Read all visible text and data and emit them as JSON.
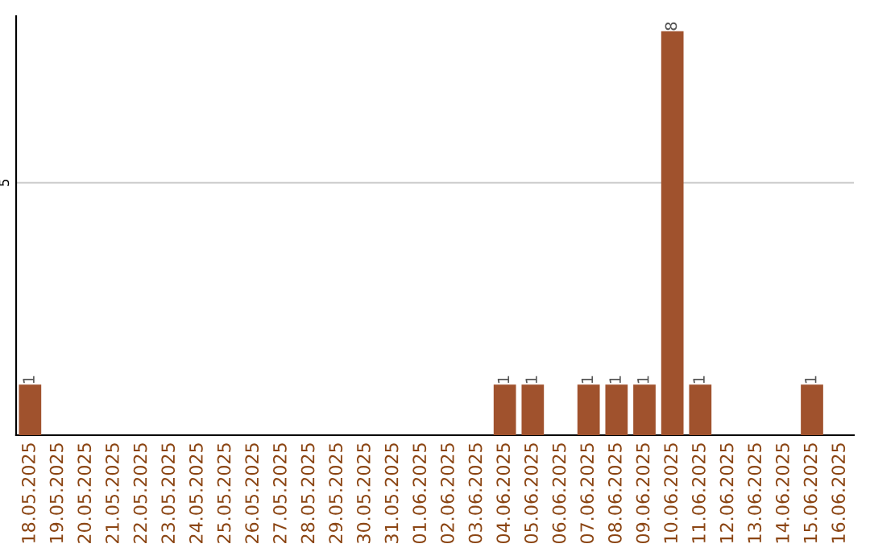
{
  "chart_data": {
    "type": "bar",
    "categories": [
      "18.05.2025",
      "19.05.2025",
      "20.05.2025",
      "21.05.2025",
      "22.05.2025",
      "23.05.2025",
      "24.05.2025",
      "25.05.2025",
      "26.05.2025",
      "27.05.2025",
      "28.05.2025",
      "29.05.2025",
      "30.05.2025",
      "31.05.2025",
      "01.06.2025",
      "02.06.2025",
      "03.06.2025",
      "04.06.2025",
      "05.06.2025",
      "06.06.2025",
      "07.06.2025",
      "08.06.2025",
      "09.06.2025",
      "10.06.2025",
      "11.06.2025",
      "12.06.2025",
      "13.06.2025",
      "14.06.2025",
      "15.06.2025",
      "16.06.2025"
    ],
    "values": [
      1,
      0,
      0,
      0,
      0,
      0,
      0,
      0,
      0,
      0,
      0,
      0,
      0,
      0,
      0,
      0,
      0,
      1,
      1,
      0,
      1,
      1,
      1,
      8,
      1,
      0,
      0,
      0,
      1,
      0
    ],
    "value_labels": [
      "1",
      null,
      null,
      null,
      null,
      null,
      null,
      null,
      null,
      null,
      null,
      null,
      null,
      null,
      null,
      null,
      null,
      "1",
      "1",
      null,
      "1",
      "1",
      "1",
      "8",
      "1",
      null,
      null,
      null,
      "1",
      null
    ],
    "color": "#a0522d",
    "ylim": [
      0,
      8.3
    ],
    "yticks": [
      5
    ],
    "grid": "y"
  }
}
